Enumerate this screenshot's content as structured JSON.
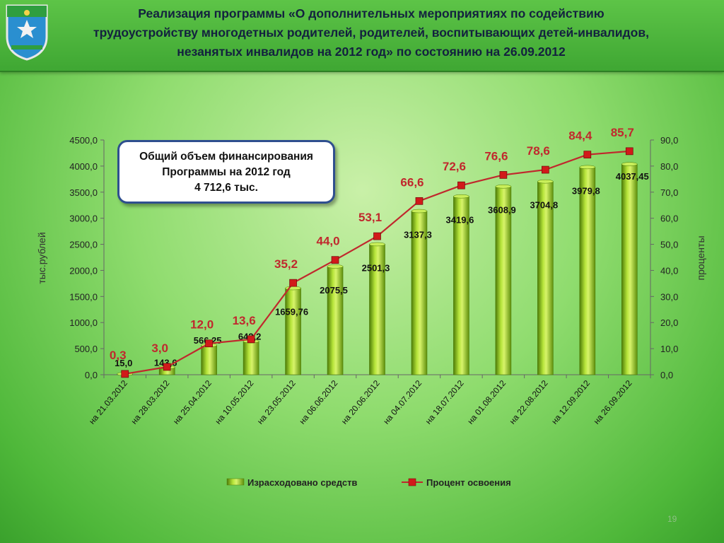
{
  "header": {
    "title_line1": "Реализация программы  «О дополнительных мероприятиях по содействию",
    "title_line2": "трудоустройству многодетных родителей, родителей, воспитывающих детей-инвалидов,",
    "title_line3": "незанятых инвалидов на 2012 год» по состоянию на 26.09.2012"
  },
  "info_box": {
    "line1": "Общий объем финансирования",
    "line2": "Программы  на  2012 год",
    "line3": "4 712,6 тыс."
  },
  "page_number": "19",
  "colors": {
    "bar": "#8fc21a",
    "line": "#c0282d",
    "marker": "#d11a1a",
    "pct_label": "#c0282d"
  },
  "chart_data": {
    "type": "bar",
    "categories": [
      "на 21.03.2012",
      "на 28.03.2012",
      "на 25.04.2012",
      "на 10.05.2012",
      "на 23.05.2012",
      "на 06.06.2012",
      "на 20.06.2012",
      "на 04.07.2012",
      "на 18.07.2012",
      "на 01.08.2012",
      "на 22.08.2012",
      "на 12.09.2012",
      "на 26.09.2012"
    ],
    "series": [
      {
        "name": "Израсходовано средств",
        "type": "bar",
        "axis": "left",
        "values": [
          15.0,
          143.6,
          566.25,
          642.2,
          1659.76,
          2075.5,
          2501.3,
          3137.3,
          3419.6,
          3608.9,
          3704.8,
          3979.8,
          4037.45
        ],
        "labels": [
          "15,0",
          "143,6",
          "566,25",
          "642,2",
          "1659,76",
          "2075,5",
          "2501,3",
          "3137,3",
          "3419,6",
          "3608,9",
          "3704,8",
          "3979,8",
          "4037,45"
        ]
      },
      {
        "name": "Процент освоения",
        "type": "line",
        "axis": "right",
        "values": [
          0.3,
          3.0,
          12.0,
          13.6,
          35.2,
          44.0,
          53.1,
          66.6,
          72.6,
          76.6,
          78.6,
          84.4,
          85.7
        ],
        "labels": [
          "0,3",
          "3,0",
          "12,0",
          "13,6",
          "35,2",
          "44,0",
          "53,1",
          "66,6",
          "72,6",
          "76,6",
          "78,6",
          "84,4",
          "85,7"
        ]
      }
    ],
    "ylabel": "тыс.рублей",
    "y2label": "проценты",
    "ylim": [
      0,
      4500
    ],
    "y2lim": [
      0,
      90
    ],
    "yticks": [
      "0,0",
      "500,0",
      "1000,0",
      "1500,0",
      "2000,0",
      "2500,0",
      "3000,0",
      "3500,0",
      "4000,0",
      "4500,0"
    ],
    "y2ticks": [
      "0,0",
      "10,0",
      "20,0",
      "30,0",
      "40,0",
      "50,0",
      "60,0",
      "70,0",
      "80,0",
      "90,0"
    ],
    "legend_position": "bottom",
    "grid": false
  }
}
